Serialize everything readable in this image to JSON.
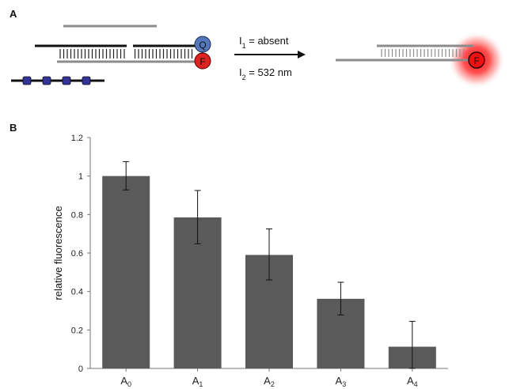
{
  "panels": {
    "a_label": "A",
    "b_label": "B"
  },
  "schematic": {
    "quencher_symbol": "Q",
    "fluorophore_symbol": "F",
    "condition_1": {
      "symbol": "I",
      "subscript": "1",
      "text": " = absent"
    },
    "condition_2": {
      "symbol": "I",
      "subscript": "2",
      "text": " = 532 nm"
    },
    "colors": {
      "strand_dark": "#111111",
      "strand_gray": "#8c8c8c",
      "quencher": "#5577bb",
      "fluorophore": "#dd2222",
      "glow": "#ff2a2a",
      "modification": "#333399"
    }
  },
  "chart_data": {
    "type": "bar",
    "categories": [
      {
        "base": "A",
        "sub": "0"
      },
      {
        "base": "A",
        "sub": "1"
      },
      {
        "base": "A",
        "sub": "2"
      },
      {
        "base": "A",
        "sub": "3"
      },
      {
        "base": "A",
        "sub": "4"
      }
    ],
    "values": [
      1.0,
      0.785,
      0.59,
      0.362,
      0.113
    ],
    "error_upper": [
      1.075,
      0.925,
      0.725,
      0.448,
      0.245
    ],
    "error_lower": [
      0.928,
      0.648,
      0.46,
      0.278,
      0.0
    ],
    "title": "",
    "xlabel": "",
    "ylabel": "relative fluorescence",
    "ylim": [
      0,
      1.2
    ],
    "yticks": [
      0,
      0.2,
      0.4,
      0.6,
      0.8,
      1,
      1.2
    ],
    "ytick_labels": [
      "0",
      "0.2",
      "0.4",
      "0.6",
      "0.8",
      "1",
      "1.2"
    ],
    "grid": false,
    "bar_color": "#5a5a5a"
  }
}
